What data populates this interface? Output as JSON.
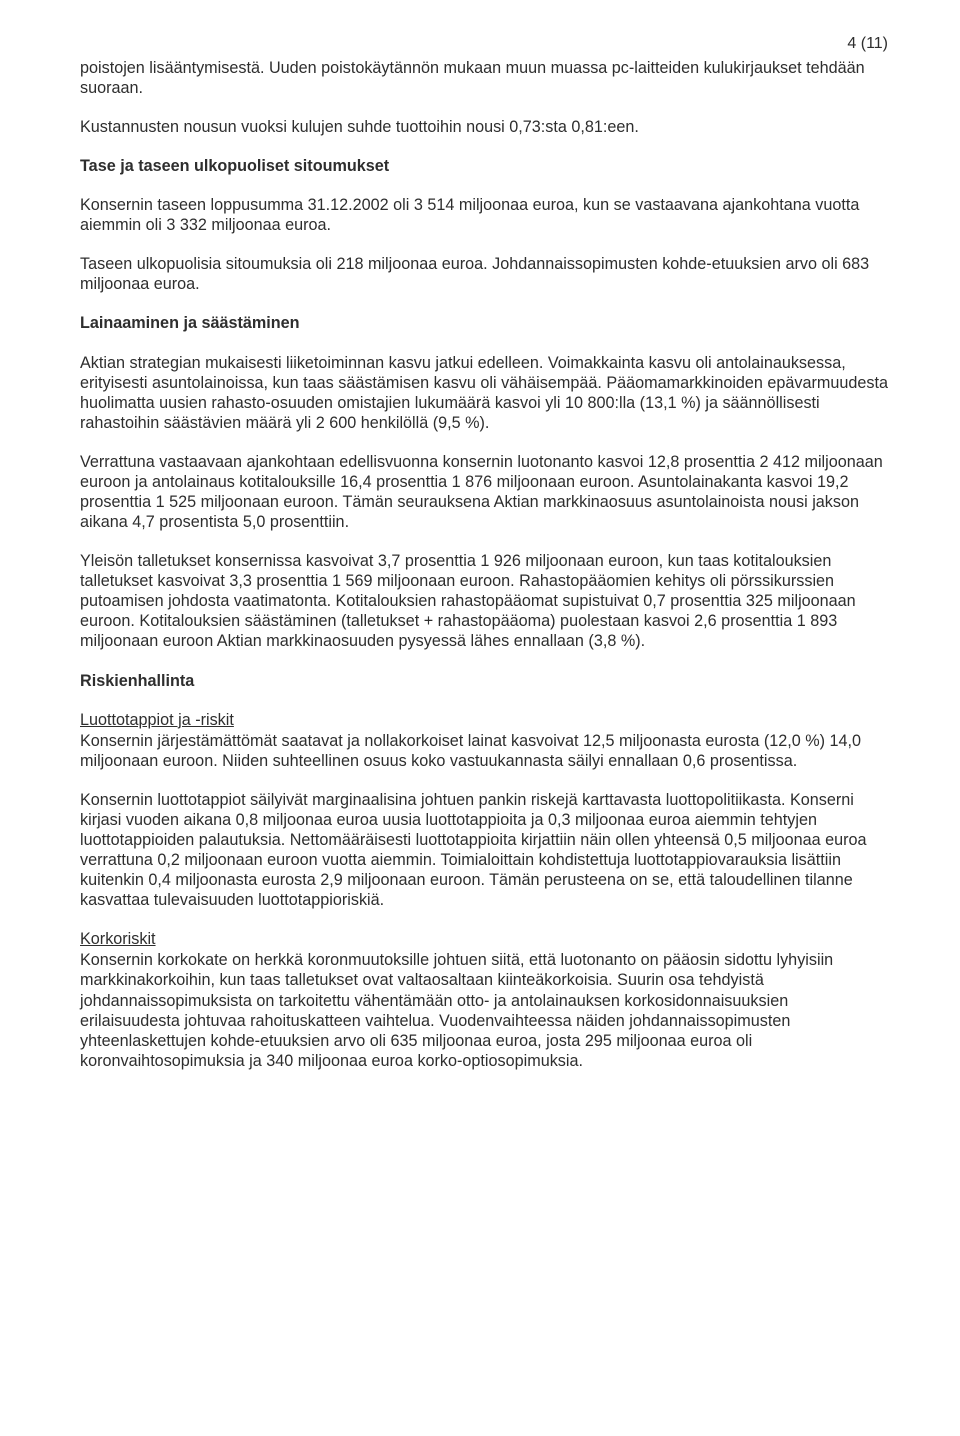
{
  "page_number": "4 (11)",
  "p1": "poistojen lisääntymisestä. Uuden poistokäytännön mukaan muun muassa pc-laitteiden kulukirjaukset tehdään suoraan.",
  "p2": "Kustannusten nousun vuoksi kulujen suhde tuottoihin nousi 0,73:sta 0,81:een.",
  "h1": "Tase ja taseen ulkopuoliset sitoumukset",
  "p3": "Konsernin taseen loppusumma 31.12.2002 oli 3 514 miljoonaa euroa, kun se vastaavana ajankohtana vuotta aiemmin oli 3 332 miljoonaa euroa.",
  "p4": "Taseen ulkopuolisia sitoumuksia oli 218 miljoonaa euroa. Johdannaissopimusten kohde-etuuksien arvo oli 683 miljoonaa euroa.",
  "h2": "Lainaaminen ja säästäminen",
  "p5": "Aktian strategian mukaisesti liiketoiminnan kasvu jatkui edelleen. Voimakkainta kasvu oli antolainauksessa, erityisesti asuntolainoissa, kun taas säästämisen kasvu oli vähäisempää. Pääomamarkkinoiden epävarmuudesta huolimatta uusien rahasto-osuuden omistajien lukumäärä kasvoi yli 10 800:lla (13,1 %) ja säännöllisesti rahastoihin säästävien määrä yli 2 600 henkilöllä (9,5 %).",
  "p6": "Verrattuna vastaavaan ajankohtaan edellisvuonna konsernin luotonanto kasvoi 12,8 prosenttia 2 412 miljoonaan euroon ja antolainaus kotitalouksille 16,4 prosenttia 1 876 miljoonaan euroon. Asuntolainakanta kasvoi 19,2 prosenttia 1 525 miljoonaan euroon. Tämän seurauksena Aktian markkinaosuus asuntolainoista nousi jakson aikana 4,7 prosentista 5,0 prosenttiin.",
  "p7": "Yleisön talletukset konsernissa kasvoivat 3,7 prosenttia 1 926 miljoonaan euroon, kun taas kotitalouksien talletukset kasvoivat 3,3 prosenttia 1 569 miljoonaan euroon. Rahastopääomien kehitys oli pörssikurssien putoamisen johdosta vaatimatonta. Kotitalouksien rahastopääomat supistuivat 0,7 prosenttia 325 miljoonaan euroon. Kotitalouksien säästäminen (talletukset + rahastopääoma) puolestaan kasvoi 2,6 prosenttia 1 893 miljoonaan euroon Aktian markkinaosuuden pysyessä lähes ennallaan (3,8 %).",
  "h3": "Riskienhallinta",
  "sh1": "Luottotappiot ja -riskit",
  "p8": "Konsernin järjestämättömät saatavat ja nollakorkoiset lainat kasvoivat 12,5 miljoonasta eurosta (12,0 %) 14,0 miljoonaan euroon. Niiden suhteellinen osuus koko vastuukannasta säilyi ennallaan 0,6 prosentissa.",
  "p9": "Konsernin luottotappiot säilyivät marginaalisina johtuen pankin riskejä karttavasta luottopolitiikasta. Konserni kirjasi vuoden aikana 0,8 miljoonaa euroa uusia luottotappioita ja 0,3 miljoonaa euroa aiemmin tehtyjen luottotappioiden palautuksia. Nettomääräisesti luottotappioita kirjattiin näin ollen yhteensä 0,5 miljoonaa euroa verrattuna 0,2 miljoonaan euroon vuotta aiemmin. Toimialoittain kohdistettuja luottotappiovarauksia lisättiin kuitenkin 0,4 miljoonasta eurosta 2,9 miljoonaan euroon. Tämän perusteena on se, että taloudellinen tilanne kasvattaa tulevaisuuden luottotappioriskiä.",
  "sh2": "Korkoriskit",
  "p10": "Konsernin korkokate on herkkä koronmuutoksille johtuen siitä, että luotonanto on pääosin sidottu lyhyisiin markkinakorkoihin, kun taas talletukset ovat valtaosaltaan kiinteäkorkoisia. Suurin osa tehdyistä johdannaissopimuksista on tarkoitettu vähentämään otto- ja antolainauksen korkosidonnaisuuksien erilaisuudesta johtuvaa rahoituskatteen vaihtelua. Vuodenvaihteessa näiden johdannaissopimusten yhteenlaskettujen kohde-etuuksien arvo oli 635 miljoonaa euroa, josta 295 miljoonaa euroa oli koronvaihtosopimuksia ja 340 miljoonaa euroa korko-optiosopimuksia."
}
